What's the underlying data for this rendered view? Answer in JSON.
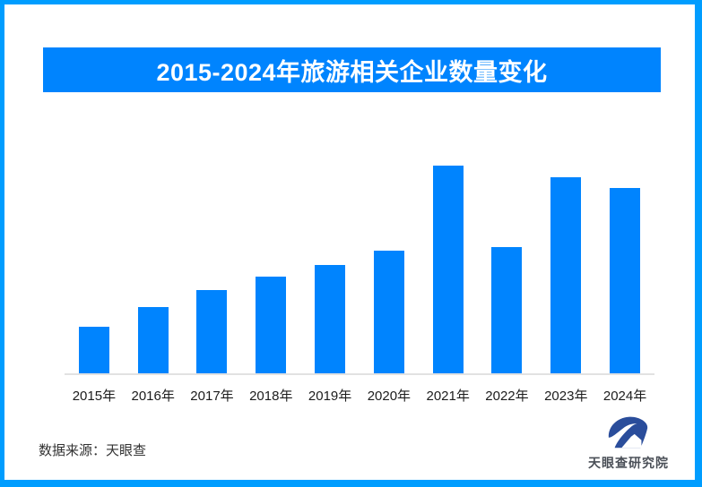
{
  "page": {
    "background": "#ffffff",
    "border_color": "#009dff"
  },
  "header": {
    "title": "2015-2024年旅游相关企业数量变化",
    "banner_color": "#0084fe",
    "title_color": "#ffffff"
  },
  "chart_data": {
    "type": "bar",
    "title": "2015-2024年旅游相关企业数量变化",
    "categories": [
      "2015年",
      "2016年",
      "2017年",
      "2018年",
      "2019年",
      "2020年",
      "2021年",
      "2022年",
      "2023年",
      "2024年"
    ],
    "values": [
      22.4,
      31.9,
      40.1,
      46.6,
      52.2,
      59.1,
      100,
      60.8,
      94.4,
      89.2
    ],
    "value_note": "no y-axis shown; bar heights normalized to tallest bar (2021) = 100",
    "bar_color": "#0084fe",
    "xlabel": "",
    "ylabel": "",
    "ylim": [
      0,
      100
    ],
    "grid": false,
    "legend": false,
    "axis_line_color": "#e2e2e2"
  },
  "footer": {
    "source": "数据来源：天眼查",
    "logo_text": "天眼查研究院",
    "logo_color": "#2a4d9b"
  }
}
